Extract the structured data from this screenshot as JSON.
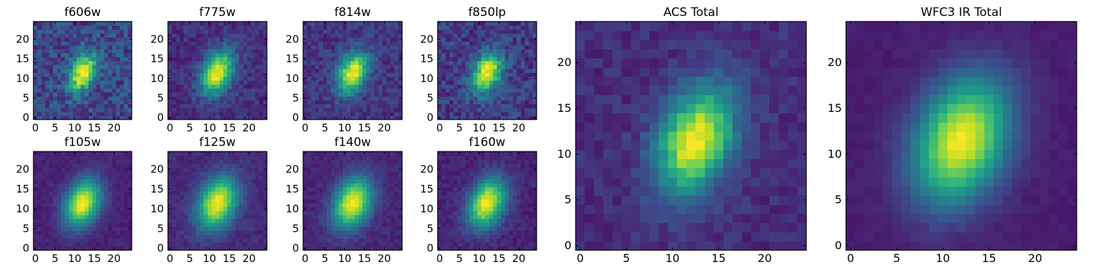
{
  "colormap": "viridis",
  "colors": {
    "low": "#440154",
    "mid": "#21918c",
    "high": "#fde725",
    "frame": "#000000",
    "background": "#ffffff"
  },
  "chart_data": [
    {
      "type": "heatmap",
      "title": "f606w",
      "grid_size": 25,
      "xlim": [
        -0.5,
        24.5
      ],
      "ylim": [
        -0.5,
        24.5
      ],
      "xticks": [
        0,
        5,
        10,
        15,
        20
      ],
      "yticks": [
        0,
        5,
        10,
        15,
        20
      ],
      "source_center": [
        12,
        11.5
      ],
      "source_sigma": [
        2.2,
        3.6
      ],
      "position_angle_deg": -24,
      "peak_level": 1.0,
      "background_level": 0.22,
      "noise_level": 0.14
    },
    {
      "type": "heatmap",
      "title": "f775w",
      "grid_size": 25,
      "xlim": [
        -0.5,
        24.5
      ],
      "ylim": [
        -0.5,
        24.5
      ],
      "xticks": [
        0,
        5,
        10,
        15,
        20
      ],
      "yticks": [
        0,
        5,
        10,
        15,
        20
      ],
      "source_center": [
        12,
        11.5
      ],
      "source_sigma": [
        2.5,
        4.0
      ],
      "position_angle_deg": -24,
      "peak_level": 1.0,
      "background_level": 0.14,
      "noise_level": 0.08
    },
    {
      "type": "heatmap",
      "title": "f814w",
      "grid_size": 25,
      "xlim": [
        -0.5,
        24.5
      ],
      "ylim": [
        -0.5,
        24.5
      ],
      "xticks": [
        0,
        5,
        10,
        15,
        20
      ],
      "yticks": [
        0,
        5,
        10,
        15,
        20
      ],
      "source_center": [
        12,
        11.5
      ],
      "source_sigma": [
        2.4,
        3.8
      ],
      "position_angle_deg": -24,
      "peak_level": 1.0,
      "background_level": 0.16,
      "noise_level": 0.09
    },
    {
      "type": "heatmap",
      "title": "f850lp",
      "grid_size": 25,
      "xlim": [
        -0.5,
        24.5
      ],
      "ylim": [
        -0.5,
        24.5
      ],
      "xticks": [
        0,
        5,
        10,
        15,
        20
      ],
      "yticks": [
        0,
        5,
        10,
        15,
        20
      ],
      "source_center": [
        12,
        11.5
      ],
      "source_sigma": [
        2.4,
        3.8
      ],
      "position_angle_deg": -24,
      "peak_level": 1.0,
      "background_level": 0.18,
      "noise_level": 0.12
    },
    {
      "type": "heatmap",
      "title": "f105w",
      "grid_size": 25,
      "xlim": [
        -0.5,
        24.5
      ],
      "ylim": [
        -0.5,
        24.5
      ],
      "xticks": [
        0,
        5,
        10,
        15,
        20
      ],
      "yticks": [
        0,
        5,
        10,
        15,
        20
      ],
      "source_center": [
        12,
        11.5
      ],
      "source_sigma": [
        2.9,
        4.3
      ],
      "position_angle_deg": -24,
      "peak_level": 1.0,
      "background_level": 0.1,
      "noise_level": 0.035
    },
    {
      "type": "heatmap",
      "title": "f125w",
      "grid_size": 25,
      "xlim": [
        -0.5,
        24.5
      ],
      "ylim": [
        -0.5,
        24.5
      ],
      "xticks": [
        0,
        5,
        10,
        15,
        20
      ],
      "yticks": [
        0,
        5,
        10,
        15,
        20
      ],
      "source_center": [
        12,
        11.5
      ],
      "source_sigma": [
        3.2,
        4.7
      ],
      "position_angle_deg": -24,
      "peak_level": 1.0,
      "background_level": 0.12,
      "noise_level": 0.045
    },
    {
      "type": "heatmap",
      "title": "f140w",
      "grid_size": 25,
      "xlim": [
        -0.5,
        24.5
      ],
      "ylim": [
        -0.5,
        24.5
      ],
      "xticks": [
        0,
        5,
        10,
        15,
        20
      ],
      "yticks": [
        0,
        5,
        10,
        15,
        20
      ],
      "source_center": [
        12,
        11.5
      ],
      "source_sigma": [
        3.1,
        4.6
      ],
      "position_angle_deg": -24,
      "peak_level": 1.0,
      "background_level": 0.11,
      "noise_level": 0.04
    },
    {
      "type": "heatmap",
      "title": "f160w",
      "grid_size": 25,
      "xlim": [
        -0.5,
        24.5
      ],
      "ylim": [
        -0.5,
        24.5
      ],
      "xticks": [
        0,
        5,
        10,
        15,
        20
      ],
      "yticks": [
        0,
        5,
        10,
        15,
        20
      ],
      "source_center": [
        12,
        11.5
      ],
      "source_sigma": [
        3.0,
        4.5
      ],
      "position_angle_deg": -24,
      "peak_level": 1.0,
      "background_level": 0.1,
      "noise_level": 0.05
    },
    {
      "type": "heatmap",
      "title": "ACS Total",
      "grid_size": 25,
      "xlim": [
        -0.5,
        24.5
      ],
      "ylim": [
        -0.5,
        24.5
      ],
      "xticks": [
        0,
        5,
        10,
        15,
        20
      ],
      "yticks": [
        0,
        5,
        10,
        15,
        20
      ],
      "source_center": [
        12.5,
        11.5
      ],
      "source_sigma": [
        2.6,
        4.2
      ],
      "position_angle_deg": -22,
      "peak_level": 1.0,
      "background_level": 0.13,
      "noise_level": 0.06
    },
    {
      "type": "heatmap",
      "title": "WFC3 IR Total",
      "grid_size": 25,
      "xlim": [
        -0.5,
        24.5
      ],
      "ylim": [
        -0.5,
        24.5
      ],
      "xticks": [
        0,
        5,
        10,
        15,
        20
      ],
      "yticks": [
        0,
        5,
        10,
        15,
        20
      ],
      "source_center": [
        12,
        11.5
      ],
      "source_sigma": [
        3.3,
        4.9
      ],
      "position_angle_deg": -22,
      "peak_level": 1.0,
      "background_level": 0.08,
      "noise_level": 0.02
    }
  ]
}
